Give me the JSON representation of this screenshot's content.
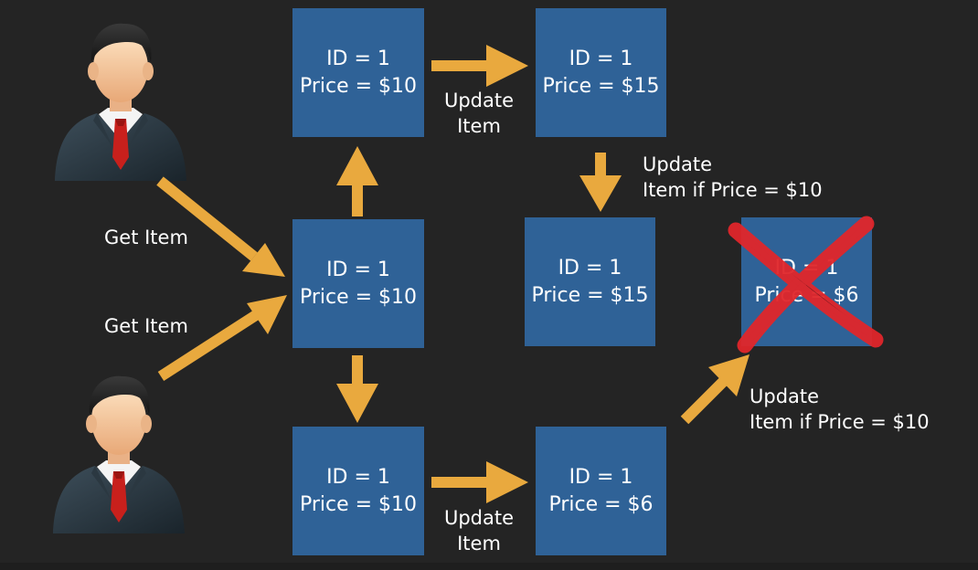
{
  "colors": {
    "background": "#242424",
    "box": "#2f6297",
    "arrow": "#e9a93e",
    "cross": "#e0262b",
    "text": "#ffffff"
  },
  "boxes": {
    "top_left": {
      "line1": "ID = 1",
      "line2": "Price = $10"
    },
    "top_right": {
      "line1": "ID = 1",
      "line2": "Price = $15"
    },
    "mid_left": {
      "line1": "ID = 1",
      "line2": "Price = $10"
    },
    "mid_right": {
      "line1": "ID = 1",
      "line2": "Price = $15"
    },
    "rejected": {
      "line1": "ID = 1",
      "line2": "Price = $6"
    },
    "bottom_left": {
      "line1": "ID = 1",
      "line2": "Price = $10"
    },
    "bottom_right": {
      "line1": "ID = 1",
      "line2": "Price = $6"
    }
  },
  "labels": {
    "get_item_1": "Get Item",
    "get_item_2": "Get Item",
    "update_top": {
      "line1": "Update",
      "line2": "Item"
    },
    "update_bottom": {
      "line1": "Update",
      "line2": "Item"
    },
    "conditional_top": {
      "line1": "Update",
      "line2": "Item if Price = $10"
    },
    "conditional_bottom": {
      "line1": "Update",
      "line2": "Item if Price = $10"
    }
  },
  "icons": {
    "user_top": "businessman-icon",
    "user_bottom": "businessman-icon",
    "rejection": "red-x-icon"
  }
}
